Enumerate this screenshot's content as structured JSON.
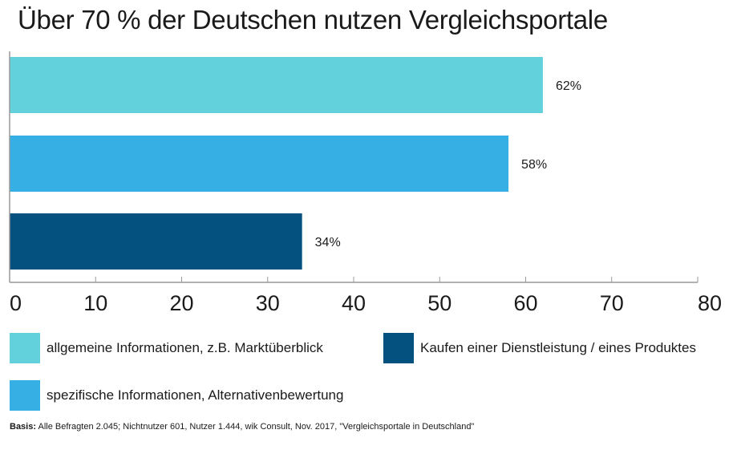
{
  "chart_data": {
    "type": "bar",
    "orientation": "horizontal",
    "title": "Über 70 % der Deutschen nutzen Vergleichsportale",
    "categories": [
      "allgemeine Informationen, z.B. Marktüberblick",
      "spezifische Informationen, Alternativenbewertung",
      "Kaufen einer Dienstleistung / eines Produktes"
    ],
    "values": [
      62,
      58,
      34
    ],
    "data_labels": [
      "62%",
      "58%",
      "34%"
    ],
    "colors": [
      "#63d1dc",
      "#36b0e4",
      "#04517f"
    ],
    "xlim": [
      0,
      80
    ],
    "x_ticks": [
      "0",
      "10",
      "20",
      "30",
      "40",
      "50",
      "60",
      "70",
      "80"
    ],
    "grid": false,
    "legend_placement": "bottom"
  },
  "legend": [
    {
      "label": "allgemeine Informationen, z.B. Marktüberblick",
      "color": "#63d1dc"
    },
    {
      "label": "Kaufen einer Dienstleistung / eines Produktes",
      "color": "#04517f"
    },
    {
      "label": "spezifische Informationen, Alternativenbewertung",
      "color": "#36b0e4"
    }
  ],
  "source": {
    "prefix": "Basis:",
    "text": " Alle Befragten 2.045; Nichtnutzer 601, Nutzer 1.444, wik Consult, Nov. 2017, \"Vergleichsportale in Deutschland\""
  }
}
